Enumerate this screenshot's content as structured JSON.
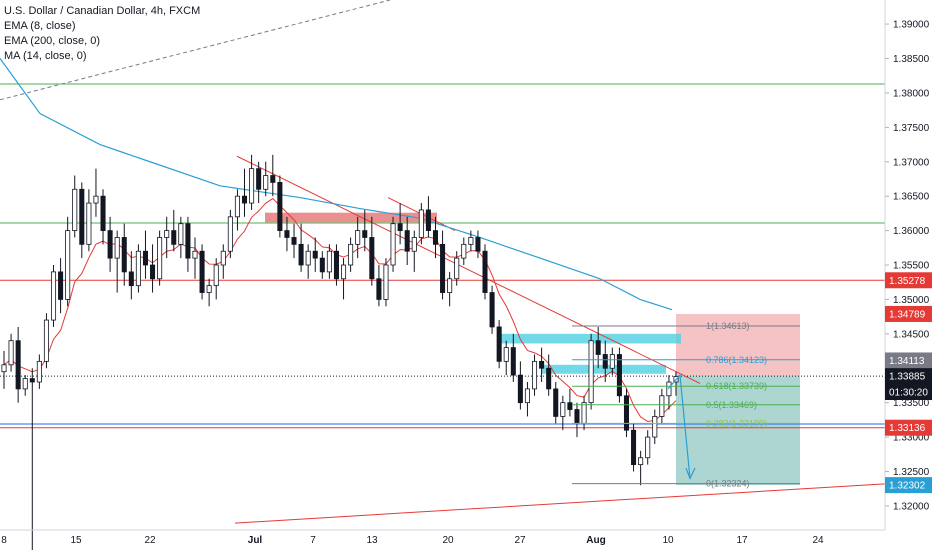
{
  "legend": {
    "title": "U.S. Dollar / Canadian Dollar, 4h, FXCM",
    "ema8": "EMA (8, close)",
    "ema200": "EMA (200, close, 0)",
    "ma14": "MA (14, close, 0)"
  },
  "colors": {
    "bull": "#ffffff",
    "bear": "#131722",
    "ema200": "#2a9fd6",
    "ema8": "#e53935",
    "red_line": "#e53935",
    "green_line": "#4caf50",
    "blue_line": "#2962ff",
    "cyan_zone": "#4dd0e1",
    "red_zone": "#e57373",
    "loss_box": "#f4b9bb",
    "profit_box": "#9fcfca"
  },
  "chart_data": {
    "type": "candlestick",
    "symbol": "U.S. Dollar / Canadian Dollar",
    "timeframe": "4h",
    "source": "FXCM",
    "y_range": [
      1.3165,
      1.3935
    ],
    "y_ticks": [
      "1.39000",
      "1.38500",
      "1.38000",
      "1.37500",
      "1.37000",
      "1.36500",
      "1.36000",
      "1.35500",
      "1.35000",
      "1.34500",
      "1.34000",
      "1.33500",
      "1.33000",
      "1.32500",
      "1.32000"
    ],
    "x_ticks": [
      "8",
      "15",
      "22",
      "Jul",
      "7",
      "13",
      "20",
      "27",
      "Aug",
      "10",
      "17",
      "24"
    ],
    "price_badges": [
      {
        "label": "1.35278",
        "value": 1.35278,
        "bg": "#e53935",
        "fg": "#ffffff"
      },
      {
        "label": "1.34789",
        "value": 1.34789,
        "bg": "#e53935",
        "fg": "#ffffff"
      },
      {
        "label": "1.34113",
        "value": 1.34113,
        "bg": "#787b86",
        "fg": "#ffffff"
      },
      {
        "label": "1.33885",
        "value": 1.33885,
        "bg": "#131722",
        "fg": "#ffffff"
      },
      {
        "label": "01:30:20",
        "value": 1.33655,
        "bg": "#131722",
        "fg": "#ffffff"
      },
      {
        "label": "1.33136",
        "value": 1.33136,
        "bg": "#e53935",
        "fg": "#ffffff"
      },
      {
        "label": "1.32302",
        "value": 1.32302,
        "bg": "#2a9fd6",
        "fg": "#ffffff"
      }
    ],
    "horizontal_levels": [
      {
        "value": 1.3813,
        "color": "green"
      },
      {
        "value": 1.3611,
        "color": "green"
      },
      {
        "value": 1.35278,
        "color": "red"
      },
      {
        "value": 1.33885,
        "color": "dotted"
      },
      {
        "value": 1.3319,
        "color": "blue"
      },
      {
        "value": 1.33136,
        "color": "red"
      }
    ],
    "fibonacci": [
      {
        "label": "1(1.34613)",
        "value": 1.34613,
        "color": "#787b86"
      },
      {
        "label": "0.786(1.34123)",
        "value": 1.34123,
        "color": "#2a9fd6"
      },
      {
        "label": "0.618(1.33739)",
        "value": 1.33739,
        "color": "#4caf50"
      },
      {
        "label": "0.5(1.33469)",
        "value": 1.33469,
        "color": "#4caf50"
      },
      {
        "label": "0.382(1.33199)",
        "value": 1.33199,
        "color": "#8bc34a"
      },
      {
        "label": "0(1.32324)",
        "value": 1.32324,
        "color": "#787b86"
      }
    ],
    "position": {
      "type": "short",
      "entry": 1.33885,
      "stop": 1.34789,
      "target": 1.32302
    },
    "ohlc": [
      [
        1.3395,
        1.3425,
        1.337,
        1.3405
      ],
      [
        1.3405,
        1.345,
        1.3395,
        1.344
      ],
      [
        1.344,
        1.346,
        1.335,
        1.337
      ],
      [
        1.337,
        1.339,
        1.336,
        1.3385
      ],
      [
        1.3385,
        1.34,
        1.312,
        1.338
      ],
      [
        1.338,
        1.342,
        1.337,
        1.341
      ],
      [
        1.341,
        1.348,
        1.34,
        1.347
      ],
      [
        1.347,
        1.355,
        1.346,
        1.354
      ],
      [
        1.354,
        1.356,
        1.348,
        1.35
      ],
      [
        1.35,
        1.362,
        1.349,
        1.36
      ],
      [
        1.36,
        1.368,
        1.359,
        1.366
      ],
      [
        1.366,
        1.367,
        1.356,
        1.358
      ],
      [
        1.358,
        1.366,
        1.357,
        1.364
      ],
      [
        1.364,
        1.369,
        1.362,
        1.365
      ],
      [
        1.365,
        1.366,
        1.358,
        1.36
      ],
      [
        1.36,
        1.362,
        1.354,
        1.356
      ],
      [
        1.356,
        1.36,
        1.351,
        1.359
      ],
      [
        1.359,
        1.361,
        1.352,
        1.354
      ],
      [
        1.354,
        1.357,
        1.35,
        1.352
      ],
      [
        1.352,
        1.358,
        1.351,
        1.357
      ],
      [
        1.357,
        1.36,
        1.353,
        1.355
      ],
      [
        1.355,
        1.358,
        1.351,
        1.353
      ],
      [
        1.353,
        1.36,
        1.352,
        1.359
      ],
      [
        1.359,
        1.362,
        1.356,
        1.36
      ],
      [
        1.36,
        1.363,
        1.357,
        1.358
      ],
      [
        1.358,
        1.362,
        1.356,
        1.361
      ],
      [
        1.361,
        1.362,
        1.354,
        1.356
      ],
      [
        1.356,
        1.359,
        1.353,
        1.357
      ],
      [
        1.357,
        1.358,
        1.35,
        1.351
      ],
      [
        1.351,
        1.353,
        1.349,
        1.352
      ],
      [
        1.352,
        1.356,
        1.35,
        1.355
      ],
      [
        1.355,
        1.358,
        1.353,
        1.357
      ],
      [
        1.357,
        1.363,
        1.356,
        1.362
      ],
      [
        1.362,
        1.366,
        1.36,
        1.365
      ],
      [
        1.365,
        1.369,
        1.362,
        1.364
      ],
      [
        1.364,
        1.371,
        1.363,
        1.369
      ],
      [
        1.369,
        1.37,
        1.364,
        1.366
      ],
      [
        1.366,
        1.37,
        1.365,
        1.368
      ],
      [
        1.368,
        1.371,
        1.365,
        1.367
      ],
      [
        1.367,
        1.368,
        1.359,
        1.36
      ],
      [
        1.36,
        1.362,
        1.357,
        1.359
      ],
      [
        1.359,
        1.361,
        1.356,
        1.358
      ],
      [
        1.358,
        1.361,
        1.354,
        1.355
      ],
      [
        1.355,
        1.358,
        1.353,
        1.357
      ],
      [
        1.357,
        1.359,
        1.354,
        1.356
      ],
      [
        1.356,
        1.357,
        1.353,
        1.354
      ],
      [
        1.354,
        1.358,
        1.353,
        1.357
      ],
      [
        1.357,
        1.358,
        1.352,
        1.353
      ],
      [
        1.353,
        1.356,
        1.35,
        1.355
      ],
      [
        1.355,
        1.359,
        1.354,
        1.358
      ],
      [
        1.358,
        1.362,
        1.356,
        1.36
      ],
      [
        1.36,
        1.363,
        1.357,
        1.359
      ],
      [
        1.359,
        1.362,
        1.352,
        1.353
      ],
      [
        1.353,
        1.355,
        1.349,
        1.35
      ],
      [
        1.35,
        1.356,
        1.349,
        1.355
      ],
      [
        1.355,
        1.362,
        1.354,
        1.361
      ],
      [
        1.361,
        1.364,
        1.358,
        1.36
      ],
      [
        1.36,
        1.362,
        1.355,
        1.357
      ],
      [
        1.357,
        1.36,
        1.354,
        1.359
      ],
      [
        1.359,
        1.364,
        1.358,
        1.363
      ],
      [
        1.363,
        1.365,
        1.359,
        1.36
      ],
      [
        1.36,
        1.362,
        1.356,
        1.358
      ],
      [
        1.358,
        1.36,
        1.35,
        1.351
      ],
      [
        1.351,
        1.354,
        1.349,
        1.353
      ],
      [
        1.353,
        1.357,
        1.352,
        1.356
      ],
      [
        1.356,
        1.359,
        1.355,
        1.358
      ],
      [
        1.358,
        1.36,
        1.357,
        1.359
      ],
      [
        1.359,
        1.36,
        1.356,
        1.357
      ],
      [
        1.357,
        1.358,
        1.35,
        1.351
      ],
      [
        1.351,
        1.352,
        1.345,
        1.346
      ],
      [
        1.346,
        1.347,
        1.34,
        1.341
      ],
      [
        1.341,
        1.344,
        1.339,
        1.343
      ],
      [
        1.343,
        1.345,
        1.338,
        1.339
      ],
      [
        1.339,
        1.341,
        1.334,
        1.335
      ],
      [
        1.335,
        1.338,
        1.333,
        1.337
      ],
      [
        1.337,
        1.342,
        1.336,
        1.341
      ],
      [
        1.341,
        1.343,
        1.338,
        1.34
      ],
      [
        1.34,
        1.342,
        1.336,
        1.337
      ],
      [
        1.337,
        1.338,
        1.332,
        1.333
      ],
      [
        1.333,
        1.336,
        1.331,
        1.335
      ],
      [
        1.335,
        1.337,
        1.333,
        1.334
      ],
      [
        1.334,
        1.335,
        1.33,
        1.332
      ],
      [
        1.332,
        1.336,
        1.331,
        1.335
      ],
      [
        1.335,
        1.345,
        1.334,
        1.344
      ],
      [
        1.344,
        1.346,
        1.34,
        1.342
      ],
      [
        1.342,
        1.344,
        1.338,
        1.34
      ],
      [
        1.34,
        1.343,
        1.339,
        1.342
      ],
      [
        1.342,
        1.343,
        1.335,
        1.336
      ],
      [
        1.336,
        1.337,
        1.33,
        1.331
      ],
      [
        1.331,
        1.332,
        1.325,
        1.326
      ],
      [
        1.326,
        1.328,
        1.323,
        1.327
      ],
      [
        1.327,
        1.331,
        1.326,
        1.33
      ],
      [
        1.33,
        1.334,
        1.329,
        1.333
      ],
      [
        1.333,
        1.337,
        1.332,
        1.336
      ],
      [
        1.336,
        1.339,
        1.334,
        1.338
      ],
      [
        1.338,
        1.3395,
        1.336,
        1.3388
      ]
    ]
  }
}
